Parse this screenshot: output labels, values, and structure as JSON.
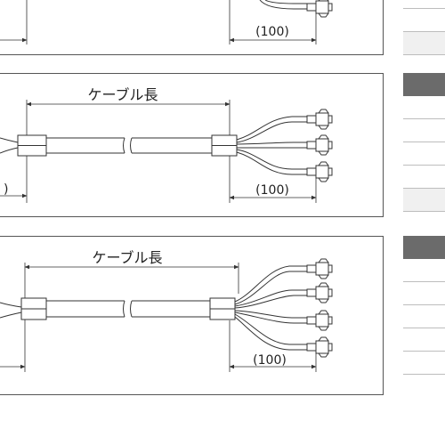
{
  "diagrams": [
    {
      "dimension_tail": "(100)"
    },
    {
      "cable_length_label": "ケーブル長",
      "dimension_tail": "(100)",
      "left_partial": ")"
    },
    {
      "cable_length_label": "ケーブル長",
      "dimension_tail": "(100)"
    }
  ],
  "colors": {
    "line": "#333333",
    "border": "#555555",
    "table_dark": "#6b6b6b",
    "table_light": "#f0f0f0"
  }
}
